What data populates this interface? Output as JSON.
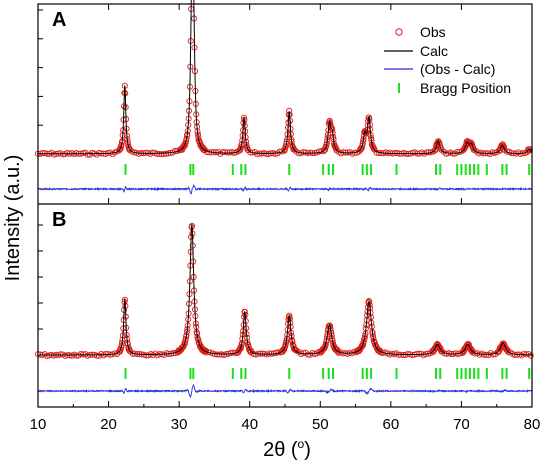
{
  "chart_data": {
    "type": "line",
    "xlabel_main": "2θ (",
    "xlabel_sup": "o",
    "xlabel_end": ")",
    "ylabel": "Intensity (a.u.)",
    "xlim": [
      10,
      80
    ],
    "xticks": [
      "10",
      "20",
      "30",
      "40",
      "50",
      "60",
      "70",
      "80"
    ],
    "legend": {
      "obs": "Obs",
      "calc": "Calc",
      "diff": "(Obs - Calc)",
      "bragg": "Bragg Position"
    },
    "colors": {
      "obs": "#e0201b",
      "calc": "#000000",
      "diff": "#2a2ad8",
      "bragg": "#19e019"
    },
    "bragg_positions": [
      22.4,
      31.6,
      32.0,
      37.6,
      38.8,
      39.4,
      45.6,
      50.4,
      51.2,
      51.8,
      56.0,
      56.6,
      57.2,
      60.8,
      66.4,
      67.0,
      69.4,
      70.0,
      70.6,
      71.2,
      71.8,
      72.4,
      73.6,
      75.8,
      76.4,
      79.6
    ],
    "panels": [
      {
        "label": "A",
        "ylim": [
          0,
          100
        ],
        "background": 1.5,
        "peaks": [
          {
            "x": 22.3,
            "height": 47,
            "width": 0.18
          },
          {
            "x": 31.8,
            "height": 100,
            "width": 0.22
          },
          {
            "x": 32.05,
            "height": 70,
            "width": 0.2
          },
          {
            "x": 39.2,
            "height": 25,
            "width": 0.2
          },
          {
            "x": 45.6,
            "height": 29,
            "width": 0.22
          },
          {
            "x": 51.3,
            "height": 20,
            "width": 0.25
          },
          {
            "x": 51.7,
            "height": 11,
            "width": 0.22
          },
          {
            "x": 56.3,
            "height": 12,
            "width": 0.25
          },
          {
            "x": 56.9,
            "height": 24,
            "width": 0.25
          },
          {
            "x": 66.7,
            "height": 9,
            "width": 0.3
          },
          {
            "x": 70.8,
            "height": 7,
            "width": 0.3
          },
          {
            "x": 71.4,
            "height": 6,
            "width": 0.3
          },
          {
            "x": 75.8,
            "height": 6,
            "width": 0.32
          },
          {
            "x": 79.6,
            "height": 3,
            "width": 0.3
          }
        ]
      },
      {
        "label": "B",
        "ylim": [
          0,
          100
        ],
        "background": 1.5,
        "peaks": [
          {
            "x": 22.3,
            "height": 43,
            "width": 0.2
          },
          {
            "x": 31.8,
            "height": 100,
            "width": 0.32
          },
          {
            "x": 39.3,
            "height": 33,
            "width": 0.25
          },
          {
            "x": 45.6,
            "height": 30,
            "width": 0.3
          },
          {
            "x": 51.3,
            "height": 23,
            "width": 0.4
          },
          {
            "x": 56.9,
            "height": 41,
            "width": 0.42
          },
          {
            "x": 66.6,
            "height": 8,
            "width": 0.45
          },
          {
            "x": 70.9,
            "height": 8,
            "width": 0.45
          },
          {
            "x": 75.9,
            "height": 9,
            "width": 0.45
          }
        ]
      }
    ]
  }
}
